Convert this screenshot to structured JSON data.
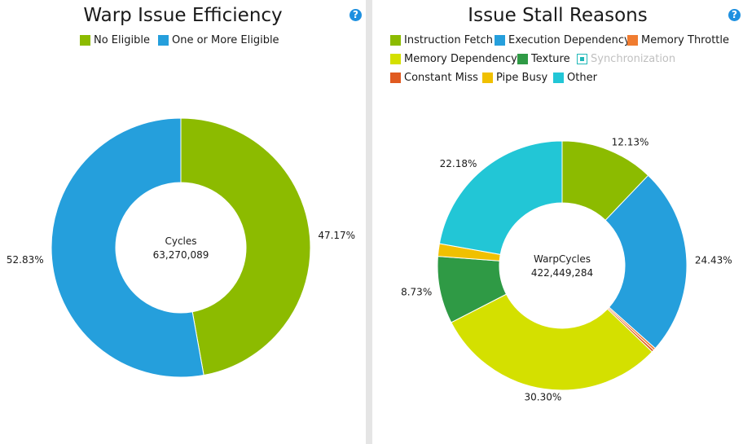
{
  "chart_data": [
    {
      "type": "pie",
      "title": "Warp Issue Efficiency",
      "center_label": "Cycles",
      "center_value": "63,270,089",
      "start_angle_deg": 0,
      "legend": [
        {
          "label": "No Eligible",
          "color": "#8cbb00",
          "enabled": true
        },
        {
          "label": "One or More Eligible",
          "color": "#259fdc",
          "enabled": true
        }
      ],
      "slices": [
        {
          "label": "No Eligible",
          "value": 47.17,
          "value_label": "47.17%",
          "color": "#8cbb00",
          "show_label": true
        },
        {
          "label": "One or More Eligible",
          "value": 52.83,
          "value_label": "52.83%",
          "color": "#259fdc",
          "show_label": true
        }
      ]
    },
    {
      "type": "pie",
      "title": "Issue Stall Reasons",
      "center_label": "WarpCycles",
      "center_value": "422,449,284",
      "start_angle_deg": 0,
      "legend": [
        {
          "label": "Instruction Fetch",
          "color": "#8cbb00",
          "enabled": true
        },
        {
          "label": "Execution Dependency",
          "color": "#259fdc",
          "enabled": true
        },
        {
          "label": "Memory Throttle",
          "color": "#f07c30",
          "enabled": true
        },
        {
          "label": "Memory Dependency",
          "color": "#d4e000",
          "enabled": true
        },
        {
          "label": "Texture",
          "color": "#2f9a45",
          "enabled": true
        },
        {
          "label": "Synchronization",
          "color": "#20b8b8",
          "enabled": false
        },
        {
          "label": "Constant Miss",
          "color": "#e05a20",
          "enabled": true
        },
        {
          "label": "Pipe Busy",
          "color": "#f0c000",
          "enabled": true
        },
        {
          "label": "Other",
          "color": "#22c6d6",
          "enabled": true
        }
      ],
      "slices": [
        {
          "label": "Instruction Fetch",
          "value": 12.13,
          "value_label": "12.13%",
          "color": "#8cbb00",
          "show_label": true
        },
        {
          "label": "Execution Dependency",
          "value": 24.43,
          "value_label": "24.43%",
          "color": "#259fdc",
          "show_label": true
        },
        {
          "label": "Memory Throttle",
          "value": 0.3,
          "value_label": "",
          "color": "#f07c30",
          "show_label": false
        },
        {
          "label": "Constant Miss",
          "value": 0.3,
          "value_label": "",
          "color": "#e05a20",
          "show_label": false
        },
        {
          "label": "Memory Dependency",
          "value": 30.3,
          "value_label": "30.30%",
          "color": "#d4e000",
          "show_label": true
        },
        {
          "label": "Texture",
          "value": 8.73,
          "value_label": "8.73%",
          "color": "#2f9a45",
          "show_label": true
        },
        {
          "label": "Pipe Busy",
          "value": 1.63,
          "value_label": "",
          "color": "#f0c000",
          "show_label": false
        },
        {
          "label": "Other",
          "value": 22.18,
          "value_label": "22.18%",
          "color": "#22c6d6",
          "show_label": true
        }
      ]
    }
  ],
  "help_icon_glyph": "?"
}
